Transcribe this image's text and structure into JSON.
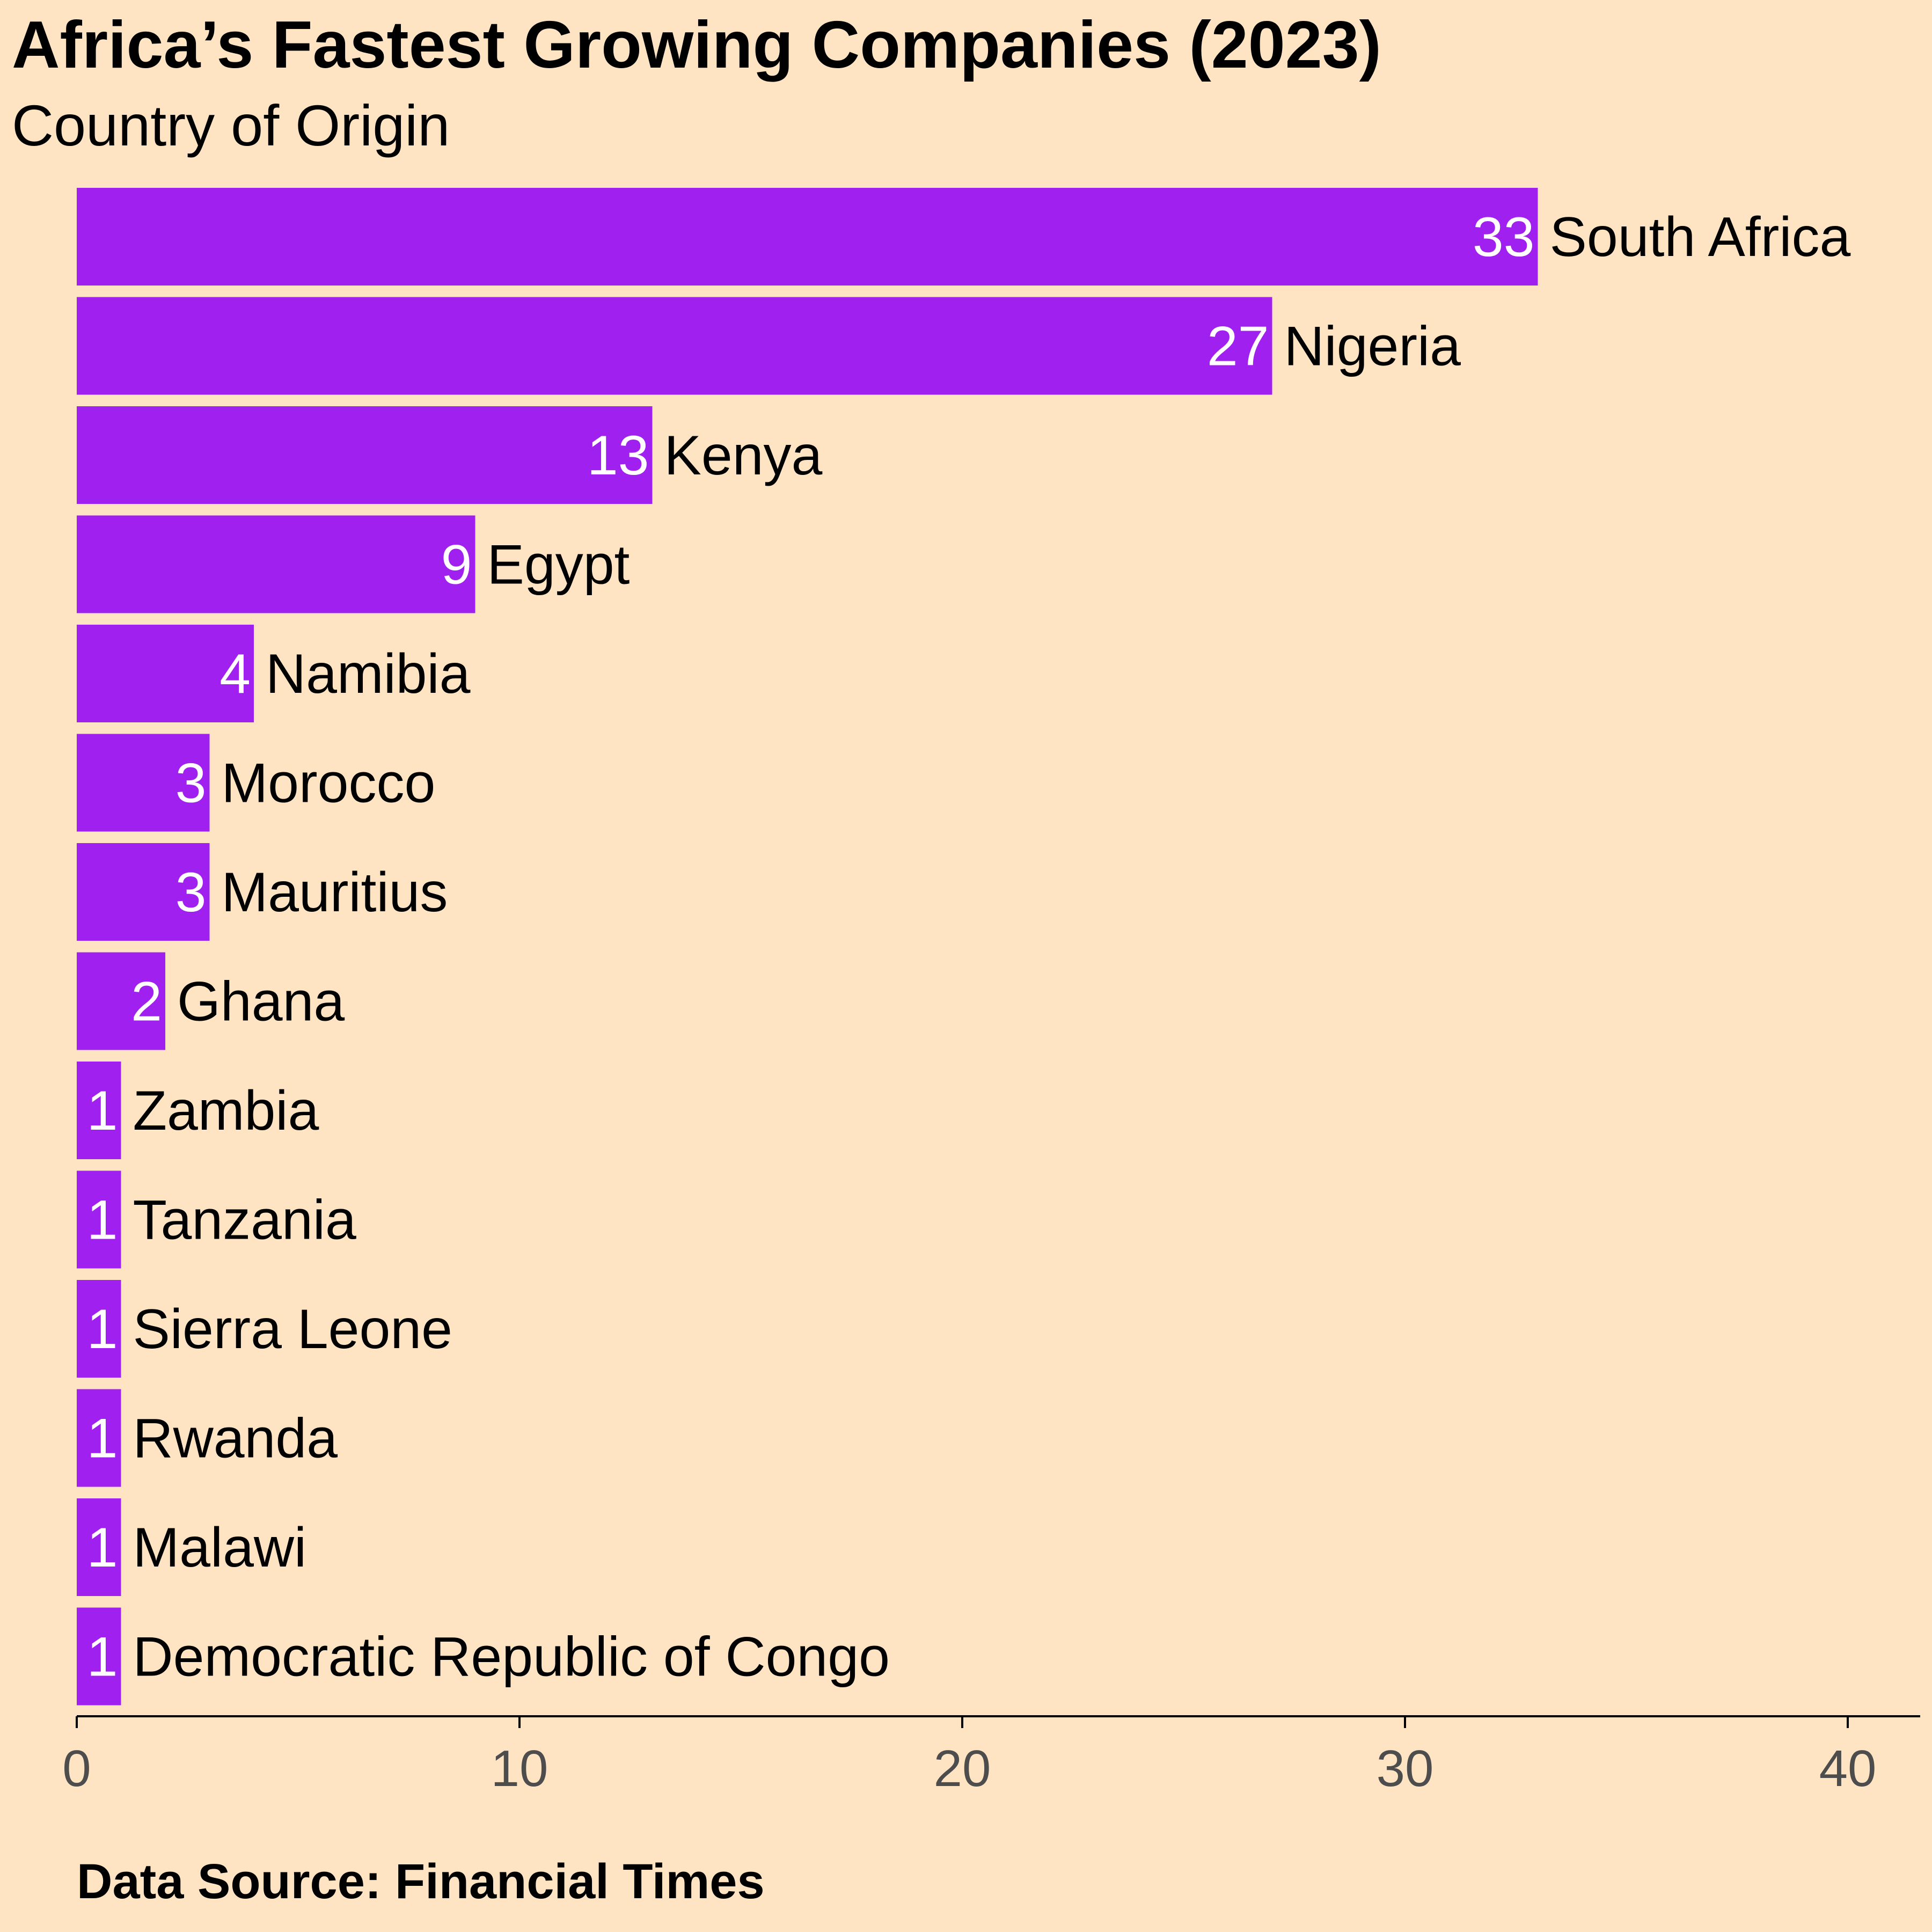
{
  "chart_data": {
    "type": "bar",
    "orientation": "horizontal",
    "title": "Africa’s Fastest Growing Companies (2023)",
    "subtitle": "Country of Origin",
    "caption": "Data Source: Financial Times",
    "categories": [
      "South Africa",
      "Nigeria",
      "Kenya",
      "Egypt",
      "Namibia",
      "Morocco",
      "Mauritius",
      "Ghana",
      "Zambia",
      "Tanzania",
      "Sierra Leone",
      "Rwanda",
      "Malawi",
      "Democratic Republic of Congo"
    ],
    "values": [
      33,
      27,
      13,
      9,
      4,
      3,
      3,
      2,
      1,
      1,
      1,
      1,
      1,
      1
    ],
    "xlim": [
      0,
      41.5
    ],
    "xticks": [
      0,
      10,
      20,
      30,
      40
    ],
    "xlabel": "",
    "ylabel": "",
    "grid": false,
    "legend": "none",
    "colors": {
      "bar": "#A020F0",
      "background": "#FFE4C4",
      "value_label": "#FFFFFF",
      "category_label": "#000000",
      "tick_label": "#4D4D4D",
      "axis_line": "#000000"
    }
  }
}
